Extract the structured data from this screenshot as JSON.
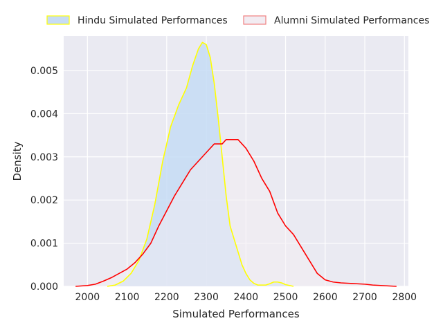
{
  "chart_data": {
    "type": "area",
    "xlabel": "Simulated Performances",
    "ylabel": "Density",
    "xlim": [
      1940,
      2810
    ],
    "ylim": [
      0,
      0.0058
    ],
    "xticks": [
      2000,
      2100,
      2200,
      2300,
      2400,
      2500,
      2600,
      2700,
      2800
    ],
    "yticks": [
      0.0,
      0.001,
      0.002,
      0.003,
      0.004,
      0.005
    ],
    "ytick_labels": [
      "0.000",
      "0.001",
      "0.002",
      "0.003",
      "0.004",
      "0.005"
    ],
    "grid": true,
    "legend_position": "top",
    "background": "#eaeaf2",
    "series": [
      {
        "name": "Hindu Simulated Performances",
        "line_color": "#ffff00",
        "fill_color": "#c6dcf5",
        "fill": true,
        "x": [
          2050,
          2070,
          2090,
          2110,
          2130,
          2150,
          2170,
          2190,
          2210,
          2230,
          2250,
          2265,
          2280,
          2290,
          2300,
          2310,
          2320,
          2330,
          2340,
          2350,
          2360,
          2370,
          2380,
          2390,
          2400,
          2410,
          2420,
          2430,
          2450,
          2460,
          2470,
          2480,
          2490,
          2500,
          2510,
          2520
        ],
        "y": [
          0.0,
          3e-05,
          0.00012,
          0.0003,
          0.0006,
          0.0011,
          0.0019,
          0.0029,
          0.0037,
          0.0042,
          0.0046,
          0.0051,
          0.0055,
          0.00565,
          0.0056,
          0.0053,
          0.0047,
          0.0039,
          0.003,
          0.0021,
          0.0014,
          0.0011,
          0.0008,
          0.0005,
          0.0003,
          0.00015,
          7e-05,
          3e-05,
          3e-05,
          6e-05,
          0.0001,
          0.0001,
          8e-05,
          4e-05,
          2e-05,
          0.0
        ]
      },
      {
        "name": "Alumni Simulated Performances",
        "line_color": "#ff0000",
        "fill_color": "#f2ecf2",
        "fill": true,
        "x": [
          1970,
          2000,
          2020,
          2040,
          2060,
          2080,
          2100,
          2120,
          2140,
          2160,
          2180,
          2200,
          2220,
          2240,
          2260,
          2280,
          2300,
          2320,
          2340,
          2350,
          2360,
          2370,
          2380,
          2390,
          2400,
          2420,
          2440,
          2460,
          2480,
          2500,
          2520,
          2540,
          2560,
          2580,
          2600,
          2620,
          2640,
          2660,
          2680,
          2700,
          2720,
          2740,
          2760,
          2780
        ],
        "y": [
          0.0,
          2e-05,
          5e-05,
          0.00012,
          0.0002,
          0.0003,
          0.0004,
          0.00055,
          0.00075,
          0.001,
          0.0014,
          0.00175,
          0.0021,
          0.0024,
          0.0027,
          0.0029,
          0.0031,
          0.0033,
          0.0033,
          0.0034,
          0.0034,
          0.0034,
          0.0034,
          0.0033,
          0.0032,
          0.0029,
          0.0025,
          0.0022,
          0.0017,
          0.0014,
          0.0012,
          0.0009,
          0.0006,
          0.0003,
          0.00015,
          0.0001,
          8e-05,
          7e-05,
          6e-05,
          5e-05,
          3e-05,
          2e-05,
          1e-05,
          0.0
        ]
      }
    ]
  }
}
